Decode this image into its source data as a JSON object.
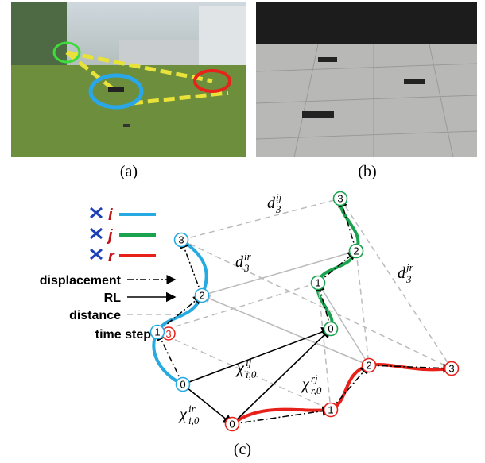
{
  "captions": [
    "(a)",
    "(b)",
    "(c)"
  ],
  "legend": {
    "agents": [
      "i",
      "j",
      "r"
    ],
    "displacement": "displacement",
    "rl": "RL",
    "distance": "distance",
    "time_step": "time step",
    "time_step_example": "3"
  },
  "nodes": {
    "i": [
      "0",
      "1",
      "2",
      "3"
    ],
    "j": [
      "0",
      "1",
      "2",
      "3"
    ],
    "r": [
      "0",
      "1",
      "2",
      "3"
    ]
  },
  "labels": [
    {
      "base": "d",
      "sub": "3",
      "sup": "ij"
    },
    {
      "base": "d",
      "sub": "3",
      "sup": "ir"
    },
    {
      "base": "d",
      "sub": "3",
      "sup": "jr"
    },
    {
      "base": "χ",
      "sub": "i,0",
      "sup": "ij"
    },
    {
      "base": "χ",
      "sub": "r,0",
      "sup": "rj"
    },
    {
      "base": "χ",
      "sub": "i,0",
      "sup": "ir"
    }
  ]
}
